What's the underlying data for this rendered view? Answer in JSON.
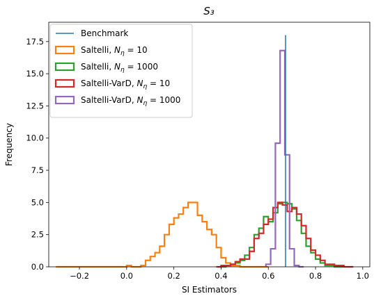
{
  "chart_data": {
    "type": "histogram",
    "title": "S₃",
    "xlabel": "SI Estimators",
    "ylabel": "Frequency",
    "xlim": [
      -0.33,
      1.03
    ],
    "ylim": [
      0,
      19
    ],
    "xticks": [
      "−0.2",
      "0.0",
      "0.2",
      "0.4",
      "0.6",
      "0.8",
      "1.0"
    ],
    "xtick_values": [
      -0.2,
      0.0,
      0.2,
      0.4,
      0.6,
      0.8,
      1.0
    ],
    "yticks": [
      "0.0",
      "2.5",
      "5.0",
      "7.5",
      "10.0",
      "12.5",
      "15.0",
      "17.5"
    ],
    "ytick_values": [
      0,
      2.5,
      5.0,
      7.5,
      10.0,
      12.5,
      15.0,
      17.5
    ],
    "grid": false,
    "legend_position": "top-left",
    "benchmark": {
      "name": "Benchmark",
      "x": 0.673,
      "ymax": 18.0,
      "color": "#1f77b4"
    },
    "series": [
      {
        "name": "Saltelli, N_η = 10",
        "label_prefix": "Saltelli, ",
        "label_suffix": "10",
        "color": "#ff7f0e",
        "bin_edges": [
          -0.3,
          -0.28,
          -0.26,
          -0.24,
          -0.22,
          -0.2,
          -0.18,
          -0.16,
          -0.14,
          -0.12,
          -0.1,
          -0.08,
          -0.06,
          -0.04,
          -0.02,
          0.0,
          0.02,
          0.04,
          0.06,
          0.08,
          0.1,
          0.12,
          0.14,
          0.16,
          0.18,
          0.2,
          0.22,
          0.24,
          0.26,
          0.28,
          0.3,
          0.32,
          0.34,
          0.36,
          0.38,
          0.4,
          0.42,
          0.44,
          0.46,
          0.48,
          0.5,
          0.52,
          0.54,
          0.56,
          0.58,
          0.6
        ],
        "counts": [
          0,
          0,
          0,
          0,
          0,
          0,
          0,
          0,
          0,
          0,
          0,
          0,
          0,
          0,
          0,
          0.1,
          0,
          0,
          0.1,
          0.5,
          0.8,
          1.1,
          1.6,
          2.5,
          3.3,
          3.8,
          4.1,
          4.6,
          5.0,
          5.0,
          4.0,
          3.5,
          2.9,
          2.5,
          1.5,
          0.7,
          0.3,
          0.1,
          0.1,
          0,
          0,
          0,
          0,
          0,
          0
        ]
      },
      {
        "name": "Saltelli, N_η = 1000",
        "label_prefix": "Saltelli, ",
        "label_suffix": "1000",
        "color": "#2ca02c",
        "bin_edges": [
          0.4,
          0.42,
          0.44,
          0.46,
          0.48,
          0.5,
          0.52,
          0.54,
          0.56,
          0.58,
          0.6,
          0.62,
          0.64,
          0.66,
          0.68,
          0.7,
          0.72,
          0.74,
          0.76,
          0.78,
          0.8,
          0.82,
          0.84,
          0.86,
          0.88,
          0.9,
          0.92
        ],
        "counts": [
          0,
          0.1,
          0.2,
          0.3,
          0.5,
          0.9,
          1.5,
          2.5,
          3.0,
          3.9,
          3.5,
          4.2,
          4.9,
          5.0,
          4.9,
          4.5,
          3.6,
          2.6,
          1.6,
          1.1,
          0.6,
          0.3,
          0.1,
          0.1,
          0,
          0
        ]
      },
      {
        "name": "Saltelli-VarD, N_η = 10",
        "label_prefix": "Saltelli-VarD, ",
        "label_suffix": "10",
        "color": "#d62728",
        "bin_edges": [
          0.38,
          0.4,
          0.42,
          0.44,
          0.46,
          0.48,
          0.5,
          0.52,
          0.54,
          0.56,
          0.58,
          0.6,
          0.62,
          0.64,
          0.66,
          0.68,
          0.7,
          0.72,
          0.74,
          0.76,
          0.78,
          0.8,
          0.82,
          0.84,
          0.86,
          0.88,
          0.9,
          0.92,
          0.94,
          0.96
        ],
        "counts": [
          0,
          0.1,
          0.1,
          0.2,
          0.4,
          0.6,
          0.6,
          1.2,
          2.2,
          2.6,
          3.3,
          3.7,
          4.6,
          5.0,
          4.8,
          4.3,
          4.6,
          4.1,
          3.2,
          2.2,
          1.3,
          0.9,
          0.5,
          0.2,
          0.2,
          0.1,
          0.1,
          0,
          0
        ]
      },
      {
        "name": "Saltelli-VarD, N_η = 1000",
        "label_prefix": "Saltelli-VarD, ",
        "label_suffix": "1000",
        "color": "#9467bd",
        "bin_edges": [
          0.59,
          0.61,
          0.63,
          0.65,
          0.67,
          0.69,
          0.71,
          0.73,
          0.75
        ],
        "counts": [
          0.2,
          1.4,
          9.6,
          16.8,
          8.7,
          1.4,
          0.1,
          0
        ]
      }
    ]
  }
}
